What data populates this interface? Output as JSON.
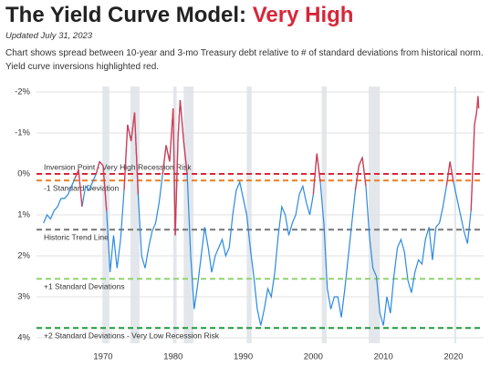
{
  "chart_data": {
    "type": "line",
    "title": "The Yield Curve Model:",
    "title_highlight": "Very High",
    "subtitle": "Updated July 31, 2023",
    "description": "Chart shows spread between 10-year and 3-mo Treasury debt relative to # of standard deviations from historical norm. Yield curve inversions highlighted red.",
    "xlim": [
      1960.5,
      2024.3
    ],
    "xticks": [
      1970,
      1980,
      1990,
      2000,
      2010,
      2020
    ],
    "ylim": [
      -2,
      4
    ],
    "y_reversed": true,
    "yticks": [
      {
        "value": -2,
        "label": "-2%"
      },
      {
        "value": -1,
        "label": "-1%"
      },
      {
        "value": 0,
        "label": "0%"
      },
      {
        "value": 1,
        "label": "1%"
      },
      {
        "value": 2,
        "label": "2%"
      },
      {
        "value": 3,
        "label": "3%"
      },
      {
        "value": 4,
        "label": "4%"
      }
    ],
    "grid": true,
    "color": "#2b8ae2",
    "inversion_color": "#d63b4f",
    "shade_color": "#e3e7ec",
    "shaded_ranges": [
      [
        1969.9,
        1970.9
      ],
      [
        1973.9,
        1975.2
      ],
      [
        1980.0,
        1980.5
      ],
      [
        1981.5,
        1982.9
      ],
      [
        1990.5,
        1991.2
      ],
      [
        2001.2,
        2001.9
      ],
      [
        2007.9,
        2009.5
      ],
      [
        2020.1,
        2020.4
      ]
    ],
    "reference_lines": [
      {
        "value": 0,
        "label": "Inversion Point - Very High Recession Risk",
        "color": "#d62739"
      },
      {
        "value": 0.16,
        "label": "-1 Standard Deviation",
        "color": "#ee7d22"
      },
      {
        "value": 1.36,
        "label": "Historic Trend Line",
        "color": "#777777"
      },
      {
        "value": 2.56,
        "label": "+1 Standard Deviations",
        "color": "#8fd46e"
      },
      {
        "value": 3.76,
        "label": "+2 Standard Deviations - Very Low Recession Risk",
        "color": "#1f9a3a"
      }
    ],
    "x": [
      1961.5,
      1962,
      1962.5,
      1963,
      1963.5,
      1964,
      1964.5,
      1965,
      1965.5,
      1966,
      1966.5,
      1967,
      1967.5,
      1968,
      1968.5,
      1969,
      1969.5,
      1970,
      1970.5,
      1971,
      1971.5,
      1972,
      1972.5,
      1973,
      1973.5,
      1974,
      1974.5,
      1975,
      1975.5,
      1976,
      1976.5,
      1977,
      1977.5,
      1978,
      1978.5,
      1979,
      1979.5,
      1980,
      1980.3,
      1980.7,
      1981,
      1981.5,
      1982,
      1982.5,
      1983,
      1983.5,
      1984,
      1984.5,
      1985,
      1985.5,
      1986,
      1986.5,
      1987,
      1987.5,
      1988,
      1988.5,
      1989,
      1989.5,
      1990,
      1990.5,
      1991,
      1991.5,
      1992,
      1992.5,
      1993,
      1993.5,
      1994,
      1994.5,
      1995,
      1995.5,
      1996,
      1996.5,
      1997,
      1997.5,
      1998,
      1998.5,
      1999,
      1999.5,
      2000,
      2000.5,
      2001,
      2001.5,
      2002,
      2002.5,
      2003,
      2003.5,
      2004,
      2004.5,
      2005,
      2005.5,
      2006,
      2006.5,
      2007,
      2007.5,
      2008,
      2008.5,
      2009,
      2009.5,
      2010,
      2010.5,
      2011,
      2011.5,
      2012,
      2012.5,
      2013,
      2013.5,
      2014,
      2014.5,
      2015,
      2015.5,
      2016,
      2016.5,
      2017,
      2017.5,
      2018,
      2018.5,
      2019,
      2019.5,
      2020,
      2020.5,
      2021,
      2021.5,
      2022,
      2022.5,
      2022.8,
      2023,
      2023.3,
      2023.5,
      2023.6
    ],
    "values": [
      1.2,
      1.0,
      1.1,
      0.9,
      0.8,
      0.6,
      0.6,
      0.5,
      0.3,
      0.1,
      -0.1,
      0.8,
      0.3,
      0.4,
      0.2,
      0.0,
      -0.3,
      -0.2,
      0.9,
      2.4,
      1.5,
      2.3,
      1.6,
      0.4,
      -1.2,
      -0.8,
      -1.5,
      0.5,
      2.0,
      2.3,
      1.8,
      1.4,
      1.2,
      0.7,
      0.0,
      -0.7,
      -0.3,
      -1.6,
      1.5,
      -0.9,
      -1.8,
      -0.8,
      0.0,
      2.0,
      3.3,
      2.7,
      2.0,
      1.3,
      1.8,
      2.4,
      2.0,
      1.8,
      1.6,
      2.0,
      1.8,
      1.0,
      0.4,
      0.2,
      0.6,
      1.0,
      1.8,
      2.5,
      3.3,
      3.7,
      3.3,
      2.8,
      3.0,
      2.4,
      1.5,
      0.8,
      1.0,
      1.5,
      1.2,
      1.0,
      0.5,
      0.3,
      0.7,
      1.0,
      0.5,
      -0.5,
      0.2,
      1.2,
      2.8,
      3.3,
      3.0,
      3.0,
      3.5,
      2.8,
      2.0,
      1.2,
      0.4,
      -0.2,
      -0.4,
      0.3,
      1.5,
      2.3,
      2.5,
      3.4,
      3.7,
      3.0,
      3.4,
      2.5,
      1.8,
      1.6,
      1.9,
      2.6,
      2.9,
      2.4,
      2.1,
      2.2,
      1.6,
      1.3,
      2.1,
      1.3,
      1.2,
      0.8,
      0.3,
      -0.3,
      0.2,
      0.6,
      1.0,
      1.4,
      1.7,
      0.9,
      -0.3,
      -1.2,
      -1.5,
      -1.9,
      -1.6
    ]
  }
}
